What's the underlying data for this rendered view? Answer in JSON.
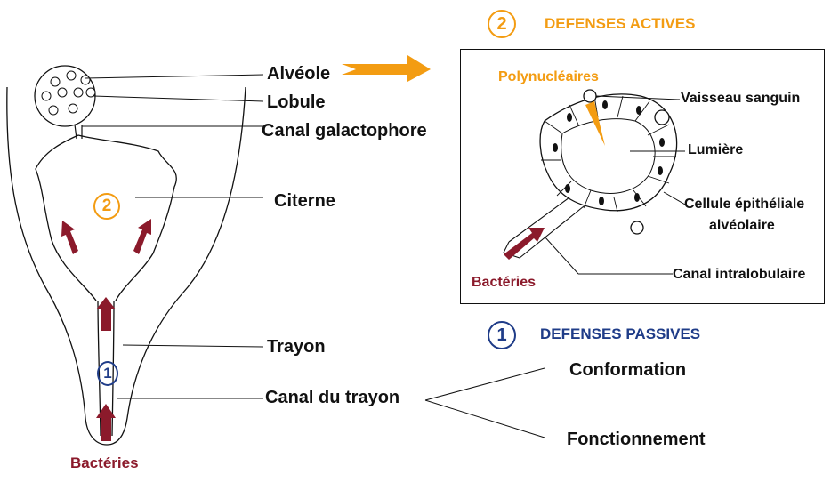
{
  "labels": {
    "alveole": "Alvéole",
    "lobule": "Lobule",
    "canal_galactophore": "Canal galactophore",
    "citerne": "Citerne",
    "trayon": "Trayon",
    "canal_du_trayon": "Canal du trayon",
    "bacteries_left": "Bactéries",
    "bacteries_right": "Bactéries",
    "polynucleaires": "Polynucléaires",
    "vaisseau_sanguin": "Vaisseau sanguin",
    "lumiere": "Lumière",
    "cellule_epitheliale": "Cellule épithéliale",
    "alveolaire": "alvéolaire",
    "canal_intralobulaire": "Canal intralobulaire",
    "conformation": "Conformation",
    "fonctionnement": "Fonctionnement"
  },
  "sections": {
    "active_number": "2",
    "active_title": "DEFENSES ACTIVES",
    "passive_number": "1",
    "passive_title": "DEFENSES PASSIVES"
  },
  "markers": {
    "citerne_number": "2",
    "trayon_number": "1"
  },
  "colors": {
    "orange": "#f39c12",
    "blue": "#1f3c88",
    "dark_red": "#8b1a2b",
    "line": "#111111"
  }
}
